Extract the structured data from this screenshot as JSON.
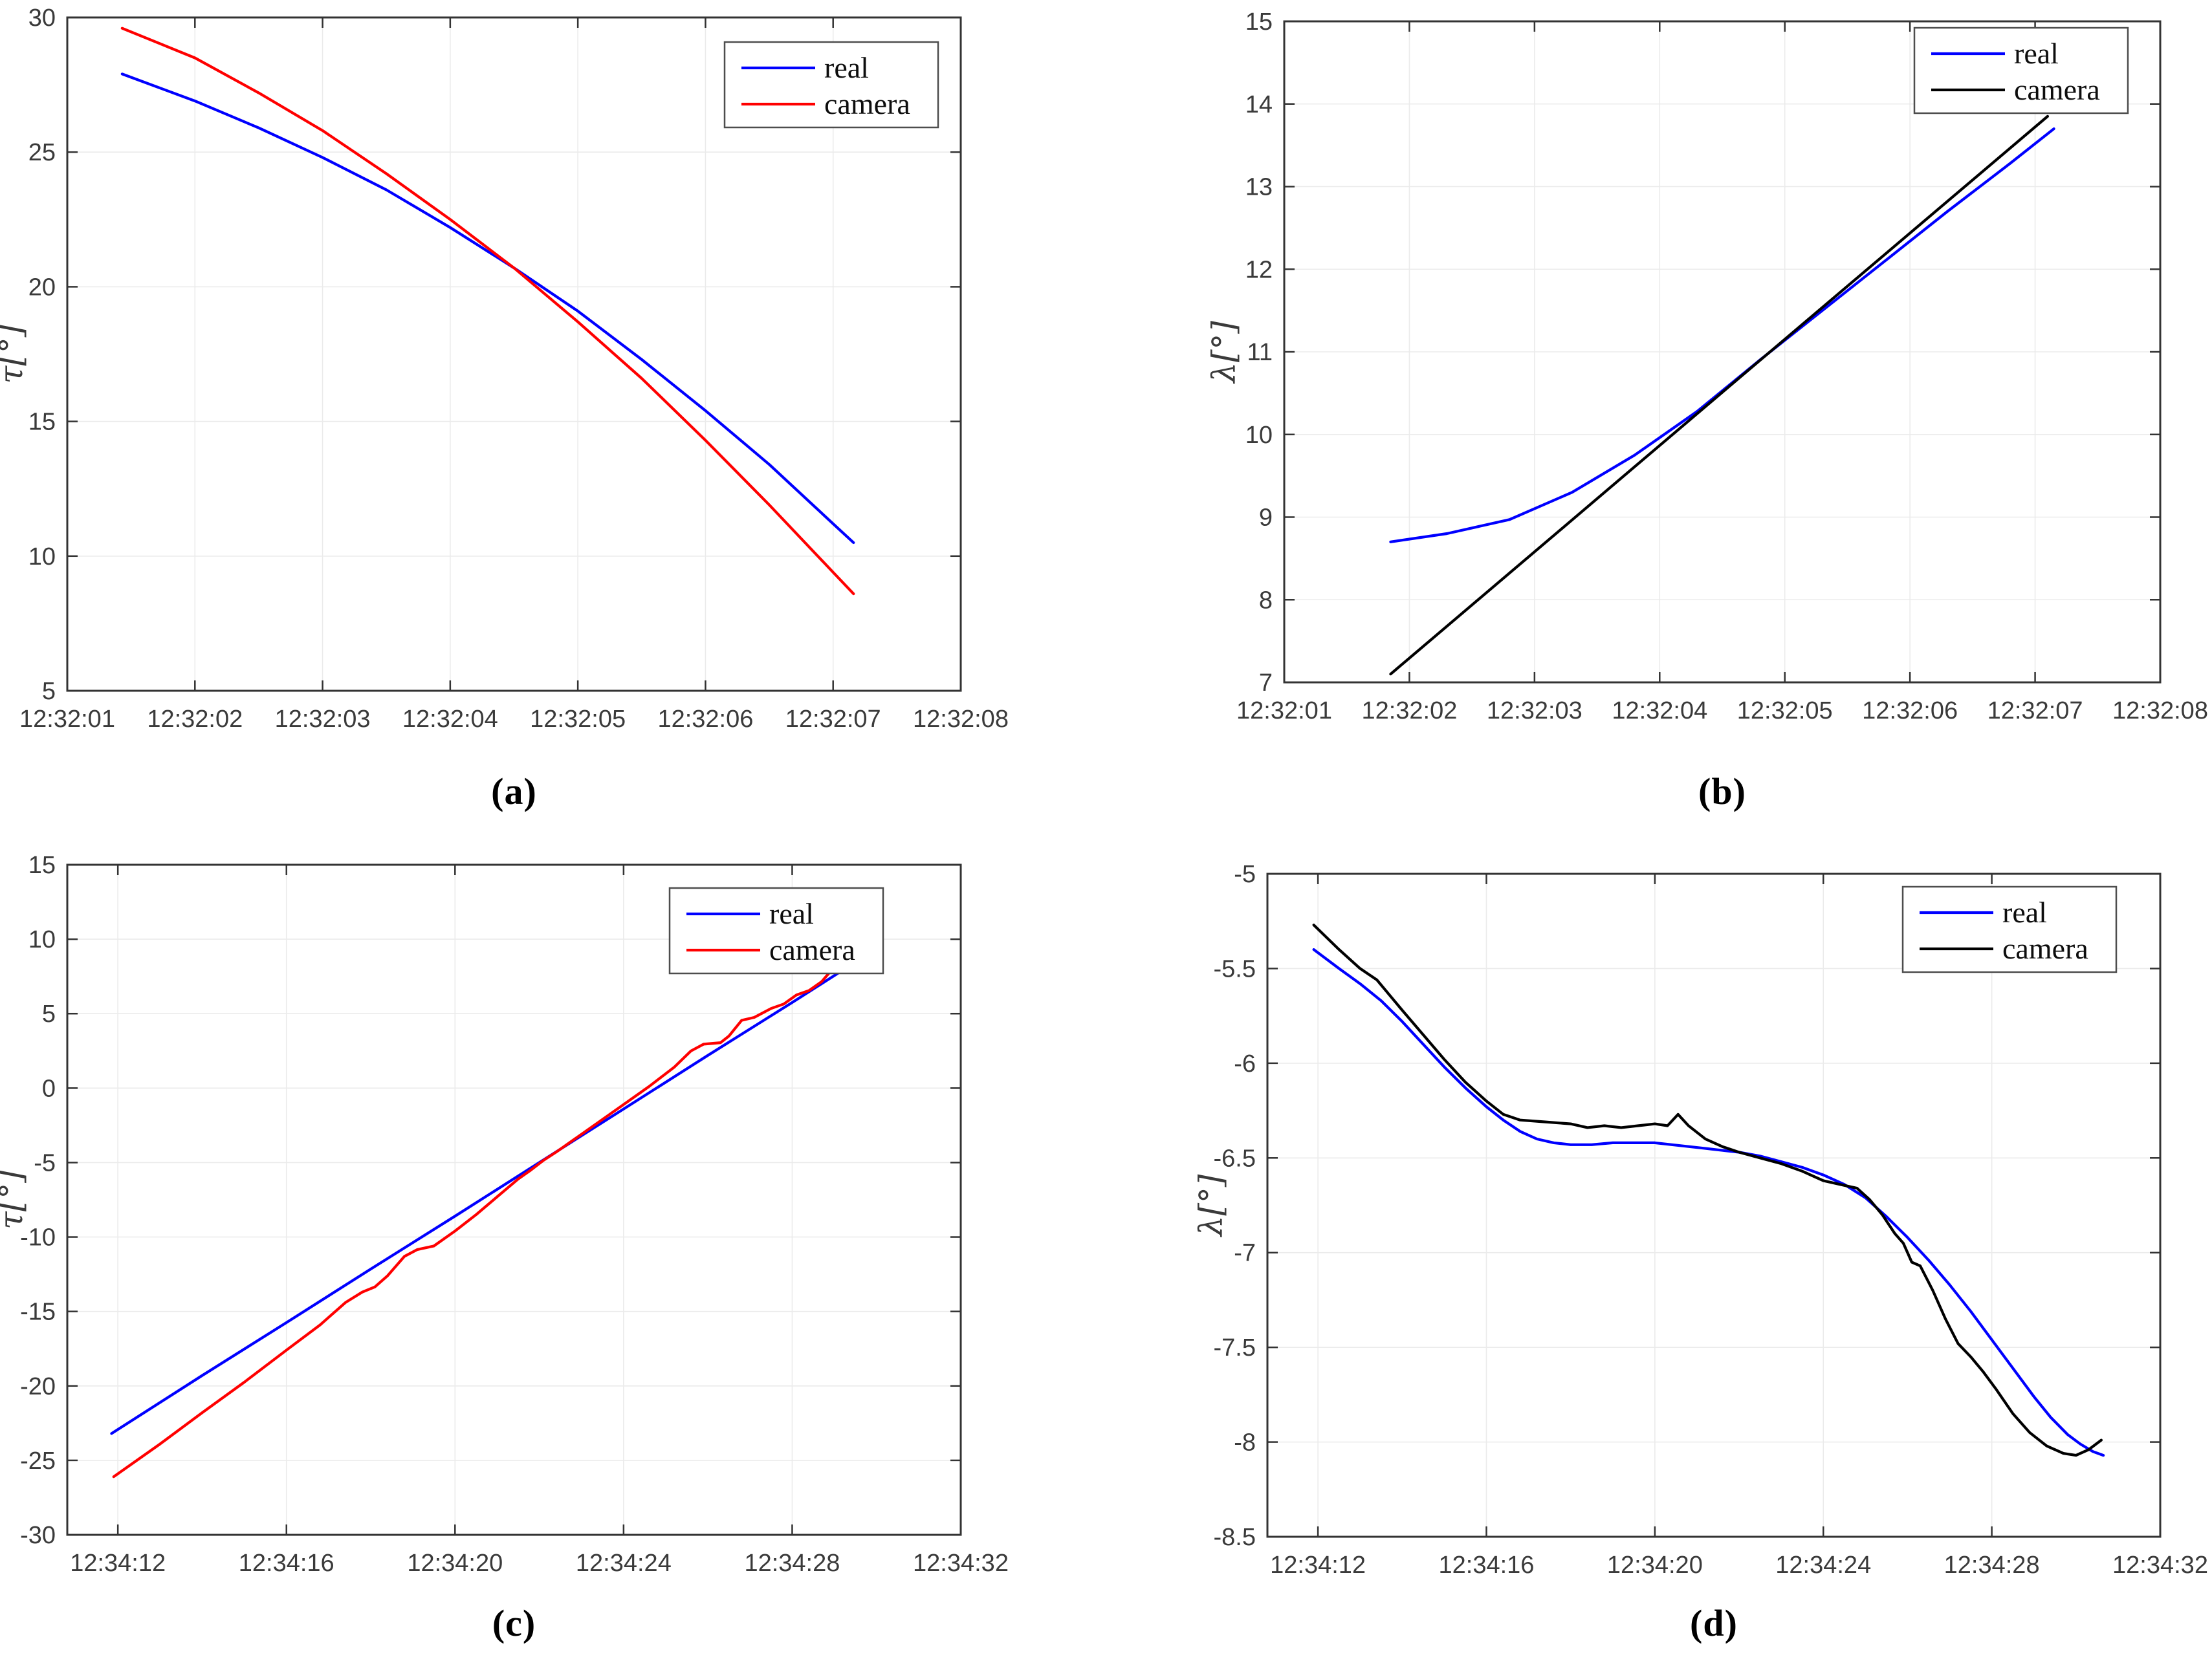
{
  "palette": {
    "real_blue": "#0000ff",
    "camera_red": "#ff0000",
    "camera_black": "#000000",
    "grid": "#ebebeb",
    "axis": "#333333",
    "tick_text": "#3a3a3a",
    "legend_border": "#4d4d4d",
    "background": "#ffffff"
  },
  "chart_data": [
    {
      "id": "a",
      "type": "line",
      "caption": "(a)",
      "ylabel": "τ[°]",
      "xlabel": "",
      "title": "",
      "grid": true,
      "x_domain": [
        0,
        7
      ],
      "y_domain": [
        5,
        30
      ],
      "x_ticks": [
        {
          "v": 0,
          "label": "12:32:01"
        },
        {
          "v": 1,
          "label": "12:32:02"
        },
        {
          "v": 2,
          "label": "12:32:03"
        },
        {
          "v": 3,
          "label": "12:32:04"
        },
        {
          "v": 4,
          "label": "12:32:05"
        },
        {
          "v": 5,
          "label": "12:32:06"
        },
        {
          "v": 6,
          "label": "12:32:07"
        },
        {
          "v": 7,
          "label": "12:32:08"
        }
      ],
      "y_ticks": [
        {
          "v": 5,
          "label": "5"
        },
        {
          "v": 10,
          "label": "10"
        },
        {
          "v": 15,
          "label": "15"
        },
        {
          "v": 20,
          "label": "20"
        },
        {
          "v": 25,
          "label": "25"
        },
        {
          "v": 30,
          "label": "30"
        }
      ],
      "legend": {
        "position": "top-right",
        "entries": [
          {
            "label": "real",
            "color": "#0000ff"
          },
          {
            "label": "camera",
            "color": "#ff0000"
          }
        ]
      },
      "series": [
        {
          "name": "real",
          "color": "#0000ff",
          "points": [
            [
              0.43,
              27.9
            ],
            [
              1,
              26.9
            ],
            [
              1.5,
              25.9
            ],
            [
              2,
              24.8
            ],
            [
              2.5,
              23.6
            ],
            [
              3,
              22.2
            ],
            [
              3.5,
              20.7
            ],
            [
              4,
              19.1
            ],
            [
              4.5,
              17.3
            ],
            [
              5,
              15.4
            ],
            [
              5.5,
              13.4
            ],
            [
              6,
              11.2
            ],
            [
              6.16,
              10.5
            ]
          ]
        },
        {
          "name": "camera",
          "color": "#ff0000",
          "points": [
            [
              0.43,
              29.6
            ],
            [
              1,
              28.5
            ],
            [
              1.5,
              27.2
            ],
            [
              2,
              25.8
            ],
            [
              2.5,
              24.2
            ],
            [
              3,
              22.5
            ],
            [
              3.5,
              20.7
            ],
            [
              4,
              18.7
            ],
            [
              4.5,
              16.6
            ],
            [
              5,
              14.3
            ],
            [
              5.5,
              11.9
            ],
            [
              6,
              9.4
            ],
            [
              6.16,
              8.6
            ]
          ]
        }
      ]
    },
    {
      "id": "b",
      "type": "line",
      "caption": "(b)",
      "ylabel": "λ[°]",
      "xlabel": "",
      "title": "",
      "grid": true,
      "x_domain": [
        0,
        7
      ],
      "y_domain": [
        7,
        15
      ],
      "x_ticks": [
        {
          "v": 0,
          "label": "12:32:01"
        },
        {
          "v": 1,
          "label": "12:32:02"
        },
        {
          "v": 2,
          "label": "12:32:03"
        },
        {
          "v": 3,
          "label": "12:32:04"
        },
        {
          "v": 4,
          "label": "12:32:05"
        },
        {
          "v": 5,
          "label": "12:32:06"
        },
        {
          "v": 6,
          "label": "12:32:07"
        },
        {
          "v": 7,
          "label": "12:32:08"
        }
      ],
      "y_ticks": [
        {
          "v": 7,
          "label": "7"
        },
        {
          "v": 8,
          "label": "8"
        },
        {
          "v": 9,
          "label": "9"
        },
        {
          "v": 10,
          "label": "10"
        },
        {
          "v": 11,
          "label": "11"
        },
        {
          "v": 12,
          "label": "12"
        },
        {
          "v": 13,
          "label": "13"
        },
        {
          "v": 14,
          "label": "14"
        },
        {
          "v": 15,
          "label": "15"
        }
      ],
      "legend": {
        "position": "top-right",
        "entries": [
          {
            "label": "real",
            "color": "#0000ff"
          },
          {
            "label": "camera",
            "color": "#000000"
          }
        ]
      },
      "series": [
        {
          "name": "real",
          "color": "#0000ff",
          "points": [
            [
              0.85,
              8.7
            ],
            [
              1.3,
              8.8
            ],
            [
              1.8,
              8.97
            ],
            [
              2.3,
              9.3
            ],
            [
              2.8,
              9.75
            ],
            [
              3.3,
              10.28
            ],
            [
              3.8,
              10.9
            ],
            [
              4.3,
              11.5
            ],
            [
              4.8,
              12.1
            ],
            [
              5.3,
              12.7
            ],
            [
              5.8,
              13.28
            ],
            [
              6.15,
              13.7
            ]
          ]
        },
        {
          "name": "camera",
          "color": "#000000",
          "points": [
            [
              0.85,
              7.1
            ],
            [
              3.5,
              10.51
            ],
            [
              6.1,
              13.85
            ]
          ]
        }
      ]
    },
    {
      "id": "c",
      "type": "line",
      "caption": "(c)",
      "ylabel": "τ[°]",
      "xlabel": "",
      "title": "",
      "grid": true,
      "x_domain": [
        10.8,
        32
      ],
      "y_domain": [
        -30,
        15
      ],
      "x_ticks": [
        {
          "v": 12,
          "label": "12:34:12"
        },
        {
          "v": 16,
          "label": "12:34:16"
        },
        {
          "v": 20,
          "label": "12:34:20"
        },
        {
          "v": 24,
          "label": "12:34:24"
        },
        {
          "v": 28,
          "label": "12:34:28"
        },
        {
          "v": 32,
          "label": "12:34:32"
        }
      ],
      "y_ticks": [
        {
          "v": -30,
          "label": "-30"
        },
        {
          "v": -25,
          "label": "-25"
        },
        {
          "v": -20,
          "label": "-20"
        },
        {
          "v": -15,
          "label": "-15"
        },
        {
          "v": -10,
          "label": "-10"
        },
        {
          "v": -5,
          "label": "-5"
        },
        {
          "v": 0,
          "label": "0"
        },
        {
          "v": 5,
          "label": "5"
        },
        {
          "v": 10,
          "label": "10"
        },
        {
          "v": 15,
          "label": "15"
        }
      ],
      "legend": {
        "position": "top-right",
        "entries": [
          {
            "label": "real",
            "color": "#0000ff"
          },
          {
            "label": "camera",
            "color": "#ff0000"
          }
        ]
      },
      "series": [
        {
          "name": "real",
          "color": "#0000ff",
          "points": [
            [
              11.85,
              -23.2
            ],
            [
              14,
              -19.3
            ],
            [
              16,
              -15.75
            ],
            [
              18,
              -12.15
            ],
            [
              20,
              -8.6
            ],
            [
              22,
              -5.0
            ],
            [
              24,
              -1.4
            ],
            [
              26,
              2.2
            ],
            [
              28,
              5.75
            ],
            [
              29.3,
              8.1
            ]
          ]
        },
        {
          "name": "camera",
          "color": "#ff0000",
          "points": [
            [
              11.9,
              -26.1
            ],
            [
              13,
              -23.9
            ],
            [
              14,
              -21.8
            ],
            [
              15,
              -19.75
            ],
            [
              16,
              -17.6
            ],
            [
              16.8,
              -15.9
            ],
            [
              17.4,
              -14.4
            ],
            [
              17.8,
              -13.7
            ],
            [
              18.1,
              -13.35
            ],
            [
              18.4,
              -12.6
            ],
            [
              18.8,
              -11.3
            ],
            [
              19.1,
              -10.85
            ],
            [
              19.5,
              -10.6
            ],
            [
              20,
              -9.6
            ],
            [
              20.5,
              -8.5
            ],
            [
              21,
              -7.3
            ],
            [
              21.5,
              -6.1
            ],
            [
              21.8,
              -5.5
            ],
            [
              22.1,
              -4.85
            ],
            [
              22.4,
              -4.3
            ],
            [
              22.8,
              -3.5
            ],
            [
              23.4,
              -2.3
            ],
            [
              24,
              -1.1
            ],
            [
              24.6,
              0.1
            ],
            [
              25.2,
              1.4
            ],
            [
              25.6,
              2.5
            ],
            [
              25.9,
              2.95
            ],
            [
              26.3,
              3.05
            ],
            [
              26.5,
              3.5
            ],
            [
              26.8,
              4.55
            ],
            [
              27.1,
              4.75
            ],
            [
              27.5,
              5.35
            ],
            [
              27.8,
              5.65
            ],
            [
              28.1,
              6.25
            ],
            [
              28.4,
              6.55
            ],
            [
              28.7,
              7.15
            ],
            [
              29.05,
              8.3
            ]
          ]
        }
      ]
    },
    {
      "id": "d",
      "type": "line",
      "caption": "(d)",
      "ylabel": "λ[°]",
      "xlabel": "",
      "title": "",
      "grid": true,
      "x_domain": [
        10.8,
        32
      ],
      "y_domain": [
        -8.5,
        -5
      ],
      "x_ticks": [
        {
          "v": 12,
          "label": "12:34:12"
        },
        {
          "v": 16,
          "label": "12:34:16"
        },
        {
          "v": 20,
          "label": "12:34:20"
        },
        {
          "v": 24,
          "label": "12:34:24"
        },
        {
          "v": 28,
          "label": "12:34:28"
        },
        {
          "v": 32,
          "label": "12:34:32"
        }
      ],
      "y_ticks": [
        {
          "v": -8.5,
          "label": "-8.5"
        },
        {
          "v": -8,
          "label": "-8"
        },
        {
          "v": -7.5,
          "label": "-7.5"
        },
        {
          "v": -7,
          "label": "-7"
        },
        {
          "v": -6.5,
          "label": "-6.5"
        },
        {
          "v": -6,
          "label": "-6"
        },
        {
          "v": -5.5,
          "label": "-5.5"
        },
        {
          "v": -5,
          "label": "-5"
        }
      ],
      "legend": {
        "position": "top-right",
        "entries": [
          {
            "label": "real",
            "color": "#0000ff"
          },
          {
            "label": "camera",
            "color": "#000000"
          }
        ]
      },
      "series": [
        {
          "name": "real",
          "color": "#0000ff",
          "points": [
            [
              11.9,
              -5.4
            ],
            [
              12.5,
              -5.5
            ],
            [
              13,
              -5.58
            ],
            [
              13.5,
              -5.67
            ],
            [
              14,
              -5.78
            ],
            [
              14.5,
              -5.9
            ],
            [
              15,
              -6.02
            ],
            [
              15.5,
              -6.13
            ],
            [
              16,
              -6.23
            ],
            [
              16.4,
              -6.3
            ],
            [
              16.8,
              -6.36
            ],
            [
              17.2,
              -6.4
            ],
            [
              17.6,
              -6.42
            ],
            [
              18,
              -6.43
            ],
            [
              18.5,
              -6.43
            ],
            [
              19,
              -6.42
            ],
            [
              19.5,
              -6.42
            ],
            [
              20,
              -6.42
            ],
            [
              20.4,
              -6.43
            ],
            [
              20.8,
              -6.44
            ],
            [
              21.2,
              -6.45
            ],
            [
              21.6,
              -6.46
            ],
            [
              22,
              -6.47
            ],
            [
              22.5,
              -6.49
            ],
            [
              23,
              -6.52
            ],
            [
              23.5,
              -6.55
            ],
            [
              24,
              -6.59
            ],
            [
              24.5,
              -6.64
            ],
            [
              25,
              -6.71
            ],
            [
              25.5,
              -6.81
            ],
            [
              26,
              -6.92
            ],
            [
              26.5,
              -7.04
            ],
            [
              27,
              -7.17
            ],
            [
              27.5,
              -7.31
            ],
            [
              28,
              -7.46
            ],
            [
              28.5,
              -7.61
            ],
            [
              29,
              -7.76
            ],
            [
              29.4,
              -7.87
            ],
            [
              29.8,
              -7.96
            ],
            [
              30.1,
              -8.01
            ],
            [
              30.4,
              -8.05
            ],
            [
              30.65,
              -8.07
            ]
          ]
        },
        {
          "name": "camera",
          "color": "#000000",
          "points": [
            [
              11.9,
              -5.27
            ],
            [
              12.5,
              -5.4
            ],
            [
              13,
              -5.5
            ],
            [
              13.4,
              -5.56
            ],
            [
              14,
              -5.72
            ],
            [
              14.5,
              -5.85
            ],
            [
              15,
              -5.98
            ],
            [
              15.5,
              -6.1
            ],
            [
              16,
              -6.2
            ],
            [
              16.4,
              -6.27
            ],
            [
              16.8,
              -6.3
            ],
            [
              17.4,
              -6.31
            ],
            [
              18,
              -6.32
            ],
            [
              18.4,
              -6.34
            ],
            [
              18.8,
              -6.33
            ],
            [
              19.2,
              -6.34
            ],
            [
              19.6,
              -6.33
            ],
            [
              20,
              -6.32
            ],
            [
              20.3,
              -6.33
            ],
            [
              20.55,
              -6.27
            ],
            [
              20.8,
              -6.33
            ],
            [
              21.2,
              -6.4
            ],
            [
              21.6,
              -6.44
            ],
            [
              22,
              -6.47
            ],
            [
              22.5,
              -6.5
            ],
            [
              23,
              -6.53
            ],
            [
              23.5,
              -6.57
            ],
            [
              24,
              -6.62
            ],
            [
              24.4,
              -6.64
            ],
            [
              24.8,
              -6.66
            ],
            [
              25.1,
              -6.72
            ],
            [
              25.4,
              -6.8
            ],
            [
              25.7,
              -6.9
            ],
            [
              25.9,
              -6.95
            ],
            [
              26.1,
              -7.05
            ],
            [
              26.3,
              -7.07
            ],
            [
              26.6,
              -7.2
            ],
            [
              26.9,
              -7.35
            ],
            [
              27.2,
              -7.48
            ],
            [
              27.5,
              -7.55
            ],
            [
              27.8,
              -7.63
            ],
            [
              28.1,
              -7.72
            ],
            [
              28.5,
              -7.85
            ],
            [
              28.9,
              -7.95
            ],
            [
              29.3,
              -8.02
            ],
            [
              29.7,
              -8.06
            ],
            [
              30,
              -8.07
            ],
            [
              30.3,
              -8.04
            ],
            [
              30.6,
              -7.99
            ]
          ]
        }
      ]
    }
  ]
}
